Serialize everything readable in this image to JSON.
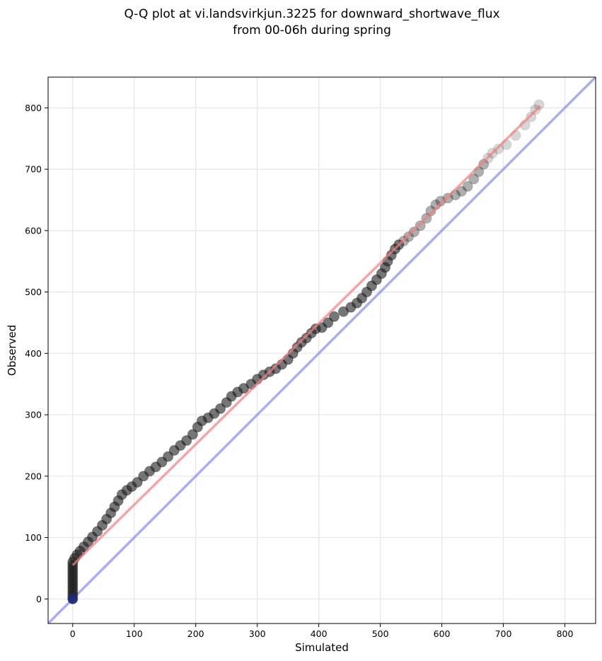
{
  "chart_data": {
    "type": "scatter",
    "title_line1": "Q-Q plot at vi.landsvirkjun.3225 for downward_shortwave_flux",
    "title_line2": "from 00-06h during spring",
    "xlabel": "Simulated",
    "ylabel": "Observed",
    "xlim": [
      -40,
      850
    ],
    "ylim": [
      -40,
      850
    ],
    "xticks": [
      0,
      100,
      200,
      300,
      400,
      500,
      600,
      700,
      800
    ],
    "yticks": [
      0,
      100,
      200,
      300,
      400,
      500,
      600,
      700,
      800
    ],
    "xtick_labels": [
      "0",
      "100",
      "200",
      "300",
      "400",
      "500",
      "600",
      "700",
      "800"
    ],
    "ytick_labels": [
      "0",
      "100",
      "200",
      "300",
      "400",
      "500",
      "600",
      "700",
      "800"
    ],
    "grid": true,
    "colors": {
      "points": "#1a1a1a",
      "fit_line": "#f08080",
      "identity_line": "#8080f0",
      "zero_point": "#1f2a80"
    },
    "series": [
      {
        "points": [
          [
            0,
            0
          ],
          [
            0,
            5
          ],
          [
            0,
            10
          ],
          [
            0,
            15
          ],
          [
            0,
            20
          ],
          [
            0,
            25
          ],
          [
            0,
            30
          ],
          [
            0,
            35
          ],
          [
            0,
            40
          ],
          [
            0,
            45
          ],
          [
            0,
            50
          ],
          [
            0,
            55
          ],
          [
            0,
            60
          ],
          [
            3,
            66
          ],
          [
            7,
            72
          ],
          [
            12,
            78
          ],
          [
            18,
            85
          ],
          [
            25,
            93
          ],
          [
            32,
            101
          ],
          [
            40,
            110
          ],
          [
            48,
            120
          ],
          [
            55,
            130
          ],
          [
            62,
            140
          ],
          [
            68,
            150
          ],
          [
            74,
            160
          ],
          [
            80,
            170
          ],
          [
            88,
            177
          ],
          [
            96,
            183
          ],
          [
            105,
            190
          ],
          [
            115,
            200
          ],
          [
            125,
            208
          ],
          [
            135,
            215
          ],
          [
            145,
            223
          ],
          [
            155,
            232
          ],
          [
            165,
            242
          ],
          [
            175,
            250
          ],
          [
            185,
            258
          ],
          [
            195,
            268
          ],
          [
            203,
            280
          ],
          [
            210,
            290
          ],
          [
            220,
            295
          ],
          [
            230,
            302
          ],
          [
            240,
            310
          ],
          [
            250,
            320
          ],
          [
            258,
            330
          ],
          [
            268,
            337
          ],
          [
            278,
            343
          ],
          [
            290,
            350
          ],
          [
            300,
            358
          ],
          [
            310,
            365
          ],
          [
            320,
            370
          ],
          [
            330,
            375
          ],
          [
            340,
            382
          ],
          [
            350,
            390
          ],
          [
            358,
            400
          ],
          [
            365,
            410
          ],
          [
            372,
            418
          ],
          [
            380,
            425
          ],
          [
            388,
            433
          ],
          [
            395,
            440
          ],
          [
            405,
            442
          ],
          [
            415,
            450
          ],
          [
            425,
            460
          ],
          [
            440,
            468
          ],
          [
            452,
            475
          ],
          [
            462,
            482
          ],
          [
            470,
            490
          ],
          [
            478,
            500
          ],
          [
            486,
            510
          ],
          [
            494,
            520
          ],
          [
            502,
            530
          ],
          [
            508,
            540
          ],
          [
            512,
            550
          ],
          [
            518,
            560
          ],
          [
            524,
            570
          ],
          [
            530,
            577
          ],
          [
            538,
            583
          ],
          [
            546,
            590
          ],
          [
            555,
            598
          ],
          [
            565,
            608
          ],
          [
            575,
            620
          ],
          [
            582,
            632
          ],
          [
            590,
            642
          ],
          [
            598,
            648
          ],
          [
            610,
            653
          ],
          [
            622,
            658
          ],
          [
            632,
            664
          ],
          [
            642,
            672
          ],
          [
            652,
            684
          ],
          [
            660,
            696
          ],
          [
            668,
            708
          ],
          [
            675,
            718
          ],
          [
            682,
            726
          ],
          [
            692,
            733
          ],
          [
            705,
            740
          ],
          [
            720,
            755
          ],
          [
            735,
            772
          ],
          [
            745,
            785
          ],
          [
            752,
            797
          ],
          [
            758,
            805
          ]
        ]
      }
    ],
    "fit_line": [
      [
        0,
        55
      ],
      [
        760,
        803
      ]
    ],
    "identity_line": [
      [
        -40,
        -40
      ],
      [
        850,
        850
      ]
    ]
  }
}
